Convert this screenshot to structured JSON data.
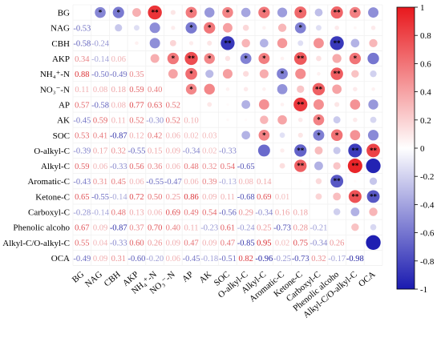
{
  "chart_data": {
    "type": "heatmap",
    "title": "",
    "variables": [
      "BG",
      "NAG",
      "CBH",
      "AKP",
      "NH₄⁺-N",
      "NO₃⁻-N",
      "AP",
      "AK",
      "SOC",
      "O-alkyl-C",
      "Alkyl-C",
      "Aromatic-C",
      "Ketone-C",
      "Carboxyl-C",
      "Phenolic alcoho",
      "Alkyl-C/O-alkyl-C",
      "OCA"
    ],
    "x_labels": [
      "BG",
      "NAG",
      "CBH",
      "AKP",
      "NH₄⁺-N",
      "NO₃⁻-N",
      "AP",
      "AK",
      "SOC",
      "O-alkyl-C",
      "Alkyl-C",
      "Aromatic-C",
      "Ketone-C",
      "Carboxyl-C",
      "Phenolic alcoho",
      "Alkyl-C/O-alkyl-C",
      "OCA"
    ],
    "y_labels": [
      "BG",
      "NAG",
      "CBH",
      "AKP",
      "NH₄⁺-N",
      "NO₃⁻-N",
      "AP",
      "AK",
      "SOC",
      "O-alkyl-C",
      "Alkyl-C",
      "Aromatic-C",
      "Ketone-C",
      "Carboxyl-C",
      "Phenolic alcoho",
      "Alkyl-C/O-alkyl-C",
      "OCA"
    ],
    "lower_triangle_values": [
      [],
      [
        -0.53
      ],
      [
        -0.58,
        -0.24
      ],
      [
        0.34,
        -0.14,
        0.06
      ],
      [
        0.88,
        -0.5,
        -0.49,
        0.35
      ],
      [
        0.11,
        0.08,
        0.18,
        0.59,
        0.4
      ],
      [
        0.57,
        -0.58,
        0.08,
        0.77,
        0.63,
        0.52
      ],
      [
        -0.45,
        0.59,
        0.11,
        0.52,
        -0.3,
        0.52,
        0.1
      ],
      [
        0.53,
        0.41,
        -0.87,
        0.12,
        0.42,
        0.06,
        0.02,
        0.03
      ],
      [
        -0.39,
        0.17,
        0.32,
        -0.55,
        0.15,
        0.09,
        -0.34,
        0.02,
        -0.33
      ],
      [
        0.59,
        0.06,
        -0.33,
        0.56,
        0.36,
        0.06,
        0.48,
        0.32,
        0.54,
        -0.65
      ],
      [
        -0.43,
        0.31,
        0.45,
        0.06,
        -0.55,
        -0.47,
        0.06,
        0.39,
        -0.13,
        0.08,
        0.14
      ],
      [
        0.65,
        -0.55,
        -0.14,
        0.72,
        0.5,
        0.25,
        0.86,
        0.09,
        0.11,
        -0.68,
        0.69,
        0.01
      ],
      [
        -0.28,
        -0.14,
        0.48,
        0.13,
        0.06,
        0.69,
        0.49,
        0.54,
        -0.56,
        0.29,
        -0.34,
        0.16,
        0.18
      ],
      [
        0.67,
        0.09,
        -0.87,
        0.37,
        0.7,
        0.4,
        0.11,
        -0.23,
        0.61,
        -0.24,
        0.25,
        -0.73,
        0.28,
        -0.21
      ],
      [
        0.55,
        0.04,
        -0.33,
        0.6,
        0.26,
        0.09,
        0.47,
        0.09,
        0.47,
        -0.85,
        0.95,
        0.02,
        0.75,
        -0.34,
        0.26
      ],
      [
        -0.49,
        0.09,
        0.31,
        -0.6,
        -0.2,
        0.06,
        -0.45,
        -0.18,
        -0.51,
        0.82,
        -0.96,
        -0.25,
        -0.73,
        0.32,
        -0.17,
        -0.98
      ]
    ],
    "significance_marks": [
      {
        "row": "BG",
        "col": "NAG",
        "mark": "*"
      },
      {
        "row": "BG",
        "col": "CBH",
        "mark": "*"
      },
      {
        "row": "BG",
        "col": "NH₄⁺-N",
        "mark": "**"
      },
      {
        "row": "BG",
        "col": "AP",
        "mark": "*"
      },
      {
        "row": "BG",
        "col": "SOC",
        "mark": "*"
      },
      {
        "row": "BG",
        "col": "Alkyl-C",
        "mark": "*"
      },
      {
        "row": "BG",
        "col": "Ketone-C",
        "mark": "*"
      },
      {
        "row": "BG",
        "col": "Phenolic alcoho",
        "mark": "**"
      },
      {
        "row": "BG",
        "col": "Alkyl-C/O-alkyl-C",
        "mark": "*"
      },
      {
        "row": "NAG",
        "col": "AP",
        "mark": "*"
      },
      {
        "row": "NAG",
        "col": "AK",
        "mark": "*"
      },
      {
        "row": "NAG",
        "col": "Ketone-C",
        "mark": "*"
      },
      {
        "row": "CBH",
        "col": "SOC",
        "mark": "**"
      },
      {
        "row": "CBH",
        "col": "Phenolic alcoho",
        "mark": "**"
      },
      {
        "row": "AKP",
        "col": "NO₃⁻-N",
        "mark": "*"
      },
      {
        "row": "AKP",
        "col": "AP",
        "mark": "**"
      },
      {
        "row": "AKP",
        "col": "AK",
        "mark": "*"
      },
      {
        "row": "AKP",
        "col": "O-alkyl-C",
        "mark": "*"
      },
      {
        "row": "AKP",
        "col": "Alkyl-C",
        "mark": "*"
      },
      {
        "row": "AKP",
        "col": "Ketone-C",
        "mark": "**"
      },
      {
        "row": "AKP",
        "col": "Alkyl-C/O-alkyl-C",
        "mark": "*"
      },
      {
        "row": "NH₄⁺-N",
        "col": "AP",
        "mark": "*"
      },
      {
        "row": "NH₄⁺-N",
        "col": "Aromatic-C",
        "mark": "*"
      },
      {
        "row": "NH₄⁺-N",
        "col": "Phenolic alcoho",
        "mark": "**"
      },
      {
        "row": "NO₃⁻-N",
        "col": "AP",
        "mark": "*"
      },
      {
        "row": "NO₃⁻-N",
        "col": "Carboxyl-C",
        "mark": "**"
      },
      {
        "row": "AP",
        "col": "Ketone-C",
        "mark": "**"
      },
      {
        "row": "AK",
        "col": "Carboxyl-C",
        "mark": "*"
      },
      {
        "row": "SOC",
        "col": "Alkyl-C",
        "mark": "*"
      },
      {
        "row": "SOC",
        "col": "Carboxyl-C",
        "mark": "*"
      },
      {
        "row": "SOC",
        "col": "Phenolic alcoho",
        "mark": "*"
      },
      {
        "row": "O-alkyl-C",
        "col": "Ketone-C",
        "mark": "**"
      },
      {
        "row": "O-alkyl-C",
        "col": "Alkyl-C/O-alkyl-C",
        "mark": "**"
      },
      {
        "row": "O-alkyl-C",
        "col": "OCA",
        "mark": "**"
      },
      {
        "row": "Alkyl-C",
        "col": "Ketone-C",
        "mark": "**"
      },
      {
        "row": "Alkyl-C",
        "col": "Alkyl-C/O-alkyl-C",
        "mark": "**"
      },
      {
        "row": "Aromatic-C",
        "col": "Phenolic alcoho",
        "mark": "**"
      },
      {
        "row": "Ketone-C",
        "col": "Alkyl-C/O-alkyl-C",
        "mark": "**"
      },
      {
        "row": "Ketone-C",
        "col": "OCA",
        "mark": "**"
      }
    ],
    "colorbar": {
      "range": [
        -1,
        1
      ],
      "ticks": [
        "1",
        "0.8",
        "0.6",
        "0.4",
        "0.2",
        "0",
        "-0.2",
        "-0.4",
        "-0.6",
        "-0.8",
        "-1"
      ],
      "colors": {
        "positive": "#e8181d",
        "neutral": "#ffffff",
        "negative": "#1a1ab0"
      }
    },
    "upper_triangle_style": "circles sized and colored by correlation",
    "lower_triangle_style": "numbers colored by correlation"
  }
}
